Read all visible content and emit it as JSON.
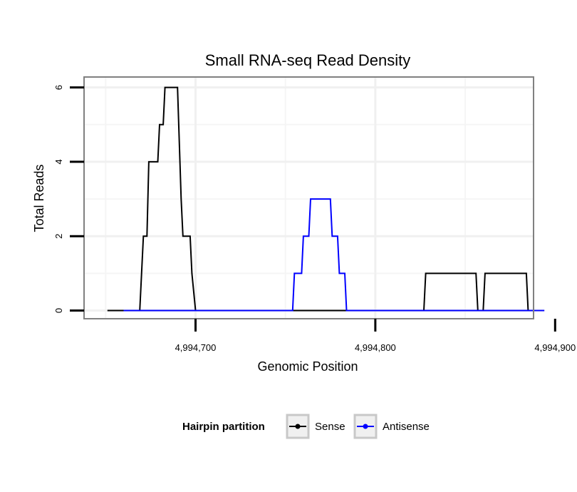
{
  "chart_data": {
    "type": "line",
    "title": "Small RNA-seq Read Density",
    "xlabel": "Genomic Position",
    "ylabel": "Total Reads",
    "xlim": [
      4994638,
      4994888
    ],
    "ylim": [
      -0.22,
      6.28
    ],
    "x_ticks": [
      {
        "value": 4994700,
        "label": "4,994,700"
      },
      {
        "value": 4994800,
        "label": "4,994,800"
      },
      {
        "value": 4994900,
        "label": "4,994,900"
      }
    ],
    "y_ticks": [
      {
        "value": 0,
        "label": "0"
      },
      {
        "value": 2,
        "label": "2"
      },
      {
        "value": 4,
        "label": "4"
      },
      {
        "value": 6,
        "label": "6"
      }
    ],
    "minor_x_grid": [
      4994650,
      4994750,
      4994850
    ],
    "minor_y_grid": [
      1,
      3,
      5
    ],
    "legend": {
      "title": "Hairpin partition",
      "position": "bottom"
    },
    "series": [
      {
        "name": "Sense",
        "color": "#000000",
        "points": [
          [
            4994651,
            0
          ],
          [
            4994669,
            0
          ],
          [
            4994671,
            2
          ],
          [
            4994673,
            2
          ],
          [
            4994674,
            4
          ],
          [
            4994679,
            4
          ],
          [
            4994680,
            5
          ],
          [
            4994682,
            5
          ],
          [
            4994683,
            6
          ],
          [
            4994690,
            6
          ],
          [
            4994692,
            3
          ],
          [
            4994693,
            2
          ],
          [
            4994697,
            2
          ],
          [
            4994698,
            1
          ],
          [
            4994700,
            0
          ],
          [
            4994827,
            0
          ],
          [
            4994828,
            1
          ],
          [
            4994856,
            1
          ],
          [
            4994857,
            0
          ],
          [
            4994860,
            0
          ],
          [
            4994861,
            1
          ],
          [
            4994884,
            1
          ],
          [
            4994885,
            0
          ],
          [
            4994894,
            0
          ]
        ]
      },
      {
        "name": "Antisense",
        "color": "#0000ff",
        "points": [
          [
            4994660,
            0
          ],
          [
            4994754,
            0
          ],
          [
            4994755,
            1
          ],
          [
            4994759,
            1
          ],
          [
            4994760,
            2
          ],
          [
            4994763,
            2
          ],
          [
            4994764,
            3
          ],
          [
            4994775,
            3
          ],
          [
            4994776,
            2
          ],
          [
            4994779,
            2
          ],
          [
            4994780,
            1
          ],
          [
            4994783,
            1
          ],
          [
            4994784,
            0
          ],
          [
            4994894,
            0
          ]
        ]
      }
    ]
  }
}
